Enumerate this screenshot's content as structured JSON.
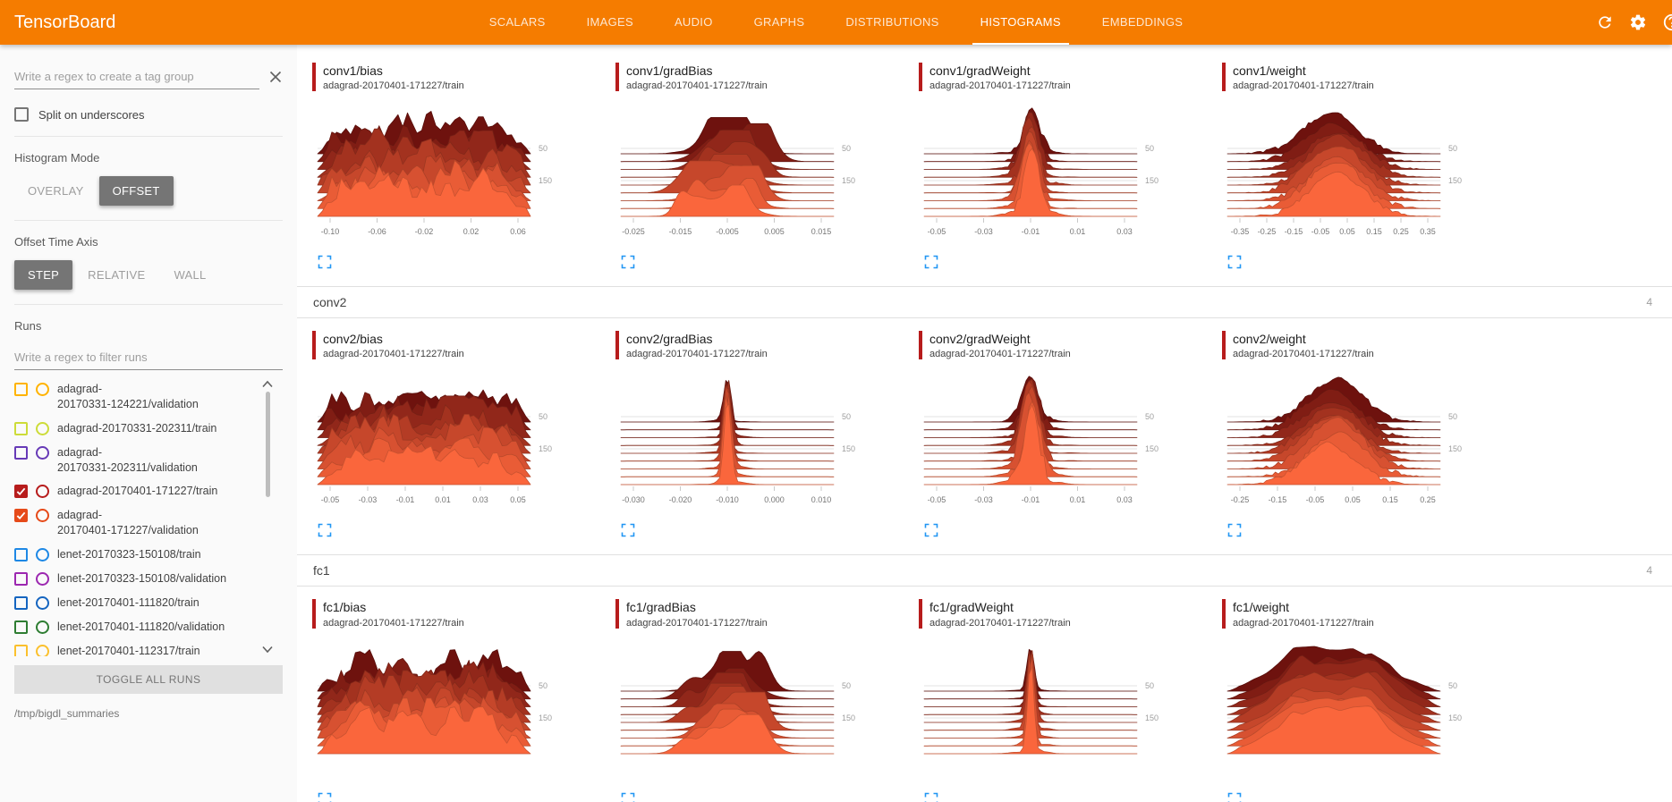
{
  "colors": {
    "header_bg": "#f57c00",
    "accent_red": "#b71c1c",
    "ridge_dark": "#6e120e",
    "ridge_bright": "#fa663c",
    "ridge_baseline": "#d9d9d9",
    "grid_line": "#e3e3e3",
    "expand_icon": "#2196f3"
  },
  "header": {
    "title": "TensorBoard",
    "tabs": [
      {
        "label": "SCALARS",
        "active": false
      },
      {
        "label": "IMAGES",
        "active": false
      },
      {
        "label": "AUDIO",
        "active": false
      },
      {
        "label": "GRAPHS",
        "active": false
      },
      {
        "label": "DISTRIBUTIONS",
        "active": false
      },
      {
        "label": "HISTOGRAMS",
        "active": true
      },
      {
        "label": "EMBEDDINGS",
        "active": false
      }
    ],
    "icons": [
      "refresh-icon",
      "settings-icon",
      "help-icon"
    ]
  },
  "sidebar": {
    "tag_filter": {
      "placeholder": "Write a regex to create a tag group",
      "value": ""
    },
    "split_on_underscores": {
      "label": "Split on underscores",
      "checked": false
    },
    "histogram_mode": {
      "label": "Histogram Mode",
      "options": [
        "OVERLAY",
        "OFFSET"
      ],
      "selected": "OFFSET"
    },
    "offset_time_axis": {
      "label": "Offset Time Axis",
      "options": [
        "STEP",
        "RELATIVE",
        "WALL"
      ],
      "selected": "STEP"
    },
    "runs": {
      "label": "Runs",
      "filter": {
        "placeholder": "Write a regex to filter runs",
        "value": ""
      },
      "items": [
        {
          "label": "adagrad-20170331-124221/validation",
          "checked": false,
          "color": "#ffb300",
          "wrapped": true
        },
        {
          "label": "adagrad-20170331-202311/train",
          "checked": false,
          "color": "#cddc39",
          "wrapped": false
        },
        {
          "label": "adagrad-20170331-202311/validation",
          "checked": false,
          "color": "#673ab7",
          "wrapped": true
        },
        {
          "label": "adagrad-20170401-171227/train",
          "checked": true,
          "color": "#b71c1c",
          "wrapped": false
        },
        {
          "label": "adagrad-20170401-171227/validation",
          "checked": true,
          "color": "#e64a19",
          "wrapped": true
        },
        {
          "label": "lenet-20170323-150108/train",
          "checked": false,
          "color": "#1e88e5",
          "wrapped": false
        },
        {
          "label": "lenet-20170323-150108/validation",
          "checked": false,
          "color": "#9c27b0",
          "wrapped": false
        },
        {
          "label": "lenet-20170401-111820/train",
          "checked": false,
          "color": "#1565c0",
          "wrapped": false
        },
        {
          "label": "lenet-20170401-111820/validation",
          "checked": false,
          "color": "#2e7d32",
          "wrapped": false
        },
        {
          "label": "lenet-20170401-112317/train",
          "checked": false,
          "color": "#fbc02d",
          "wrapped": false
        }
      ],
      "toggle_all": "TOGGLE ALL RUNS"
    },
    "log_dir": "/tmp/bigdl_summaries"
  },
  "content": {
    "groups": [
      {
        "name": "",
        "count": "",
        "cards": [
          {
            "tag": "conv1/bias",
            "run": "adagrad-20170401-171227/train",
            "type": "offset-histogram",
            "shape": "noisy",
            "seed": 3,
            "x_ticks": [
              "-0.10",
              "-0.06",
              "-0.02",
              "0.02",
              "0.06"
            ],
            "y_ticks": [
              "50",
              "150"
            ]
          },
          {
            "tag": "conv1/gradBias",
            "run": "adagrad-20170401-171227/train",
            "type": "offset-histogram",
            "shape": "bumpy",
            "seed": 7,
            "x_ticks": [
              "-0.025",
              "-0.015",
              "-0.005",
              "0.005",
              "0.015"
            ],
            "y_ticks": [
              "50",
              "150"
            ]
          },
          {
            "tag": "conv1/gradWeight",
            "run": "adagrad-20170401-171227/train",
            "type": "offset-histogram",
            "shape": "peak",
            "seed": 13,
            "x_ticks": [
              "-0.05",
              "-0.03",
              "-0.01",
              "0.01",
              "0.03"
            ],
            "y_ticks": [
              "50",
              "150"
            ]
          },
          {
            "tag": "conv1/weight",
            "run": "adagrad-20170401-171227/train",
            "type": "offset-histogram",
            "shape": "bell",
            "seed": 21,
            "x_ticks": [
              "-0.35",
              "-0.25",
              "-0.15",
              "-0.05",
              "0.05",
              "0.15",
              "0.25",
              "0.35"
            ],
            "y_ticks": [
              "50",
              "150"
            ]
          }
        ]
      },
      {
        "name": "conv2",
        "count": "4",
        "cards": [
          {
            "tag": "conv2/bias",
            "run": "adagrad-20170401-171227/train",
            "type": "offset-histogram",
            "shape": "noisy",
            "seed": 29,
            "x_ticks": [
              "-0.05",
              "-0.03",
              "-0.01",
              "0.01",
              "0.03",
              "0.05"
            ],
            "y_ticks": [
              "50",
              "150"
            ]
          },
          {
            "tag": "conv2/gradBias",
            "run": "adagrad-20170401-171227/train",
            "type": "offset-histogram",
            "shape": "spike",
            "seed": 35,
            "x_ticks": [
              "-0.030",
              "-0.020",
              "-0.010",
              "0.000",
              "0.010"
            ],
            "y_ticks": [
              "50",
              "150"
            ]
          },
          {
            "tag": "conv2/gradWeight",
            "run": "adagrad-20170401-171227/train",
            "type": "offset-histogram",
            "shape": "peak",
            "seed": 41,
            "x_ticks": [
              "-0.05",
              "-0.03",
              "-0.01",
              "0.01",
              "0.03"
            ],
            "y_ticks": [
              "50",
              "150"
            ]
          },
          {
            "tag": "conv2/weight",
            "run": "adagrad-20170401-171227/train",
            "type": "offset-histogram",
            "shape": "bell",
            "seed": 47,
            "x_ticks": [
              "-0.25",
              "-0.15",
              "-0.05",
              "0.05",
              "0.15",
              "0.25"
            ],
            "y_ticks": [
              "50",
              "150"
            ]
          }
        ]
      },
      {
        "name": "fc1",
        "count": "4",
        "cards": [
          {
            "tag": "fc1/bias",
            "run": "adagrad-20170401-171227/train",
            "type": "offset-histogram",
            "shape": "noisy",
            "seed": 53,
            "x_ticks": [],
            "y_ticks": [
              "50",
              "150"
            ]
          },
          {
            "tag": "fc1/gradBias",
            "run": "adagrad-20170401-171227/train",
            "type": "offset-histogram",
            "shape": "bumpy",
            "seed": 61,
            "x_ticks": [],
            "y_ticks": [
              "50",
              "150"
            ]
          },
          {
            "tag": "fc1/gradWeight",
            "run": "adagrad-20170401-171227/train",
            "type": "offset-histogram",
            "shape": "spike",
            "seed": 67,
            "x_ticks": [],
            "y_ticks": [
              "50",
              "150"
            ]
          },
          {
            "tag": "fc1/weight",
            "run": "adagrad-20170401-171227/train",
            "type": "offset-histogram",
            "shape": "widebell",
            "seed": 73,
            "x_ticks": [],
            "y_ticks": [
              "50",
              "150"
            ]
          }
        ]
      }
    ]
  }
}
